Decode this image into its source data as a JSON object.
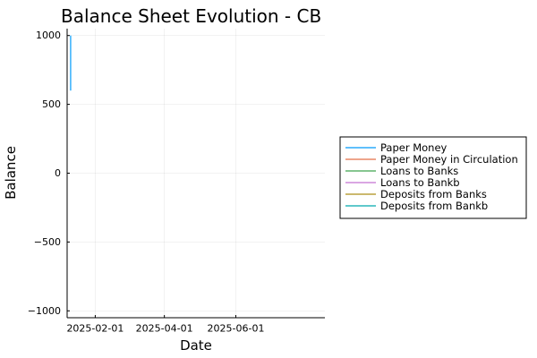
{
  "chart_data": {
    "type": "line",
    "title": "Balance Sheet Evolution - CB",
    "xlabel": "Date",
    "ylabel": "Balance",
    "x_axis_type": "date",
    "xlim": [
      "2025-01-08",
      "2025-08-16"
    ],
    "xticks": [
      "2025-02-01",
      "2025-04-01",
      "2025-06-01"
    ],
    "ylim": [
      -1050,
      1050
    ],
    "yticks": [
      -1000,
      -500,
      0,
      500,
      1000
    ],
    "ytick_labels": [
      "−1000",
      "−500",
      "0",
      "500",
      "1000"
    ],
    "grid": true,
    "legend_position": "outer-right",
    "series": [
      {
        "name": "Paper Money",
        "color": "#009AFA",
        "x": [
          "2025-01-11",
          "2025-01-11"
        ],
        "y": [
          600,
          1000
        ]
      },
      {
        "name": "Paper Money in Circulation",
        "color": "#E36F47",
        "x": [],
        "y": []
      },
      {
        "name": "Loans to Banks",
        "color": "#3EA44E",
        "x": [],
        "y": []
      },
      {
        "name": "Loans to Bankb",
        "color": "#C371D2",
        "x": [],
        "y": []
      },
      {
        "name": "Deposits from Banks",
        "color": "#AC8E18",
        "x": [],
        "y": []
      },
      {
        "name": "Deposits from Bankb",
        "color": "#00A9AD",
        "x": [],
        "y": []
      }
    ]
  }
}
